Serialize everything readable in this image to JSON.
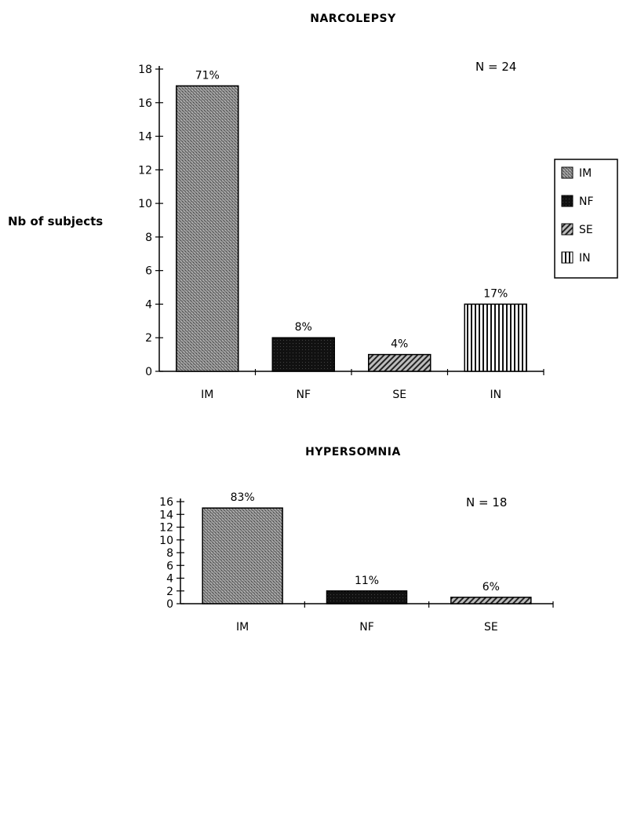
{
  "ylabel": "Nb of subjects",
  "legend": {
    "placement": "right",
    "items": [
      {
        "code": "IM",
        "pattern": "stipple"
      },
      {
        "code": "NF",
        "pattern": "solid-black"
      },
      {
        "code": "SE",
        "pattern": "diagonal"
      },
      {
        "code": "IN",
        "pattern": "vertical"
      }
    ]
  },
  "chart_data": [
    {
      "type": "bar",
      "title": "NARCOLEPSY",
      "n_label": "N = 24",
      "categories": [
        "IM",
        "NF",
        "SE",
        "IN"
      ],
      "values": [
        17,
        2,
        1,
        4
      ],
      "percent_labels": [
        "71%",
        "8%",
        "4%",
        "17%"
      ],
      "ylim": [
        0,
        18
      ],
      "yticks": [
        0,
        2,
        4,
        6,
        8,
        10,
        12,
        14,
        16,
        18
      ],
      "ylabel": "Nb of subjects",
      "grid": false
    },
    {
      "type": "bar",
      "title": "HYPERSOMNIA",
      "n_label": "N = 18",
      "categories": [
        "IM",
        "NF",
        "SE"
      ],
      "values": [
        15,
        2,
        1
      ],
      "percent_labels": [
        "83%",
        "11%",
        "6%"
      ],
      "ylim": [
        0,
        16
      ],
      "yticks": [
        0,
        2,
        4,
        6,
        8,
        10,
        12,
        14,
        16
      ],
      "grid": false
    }
  ]
}
